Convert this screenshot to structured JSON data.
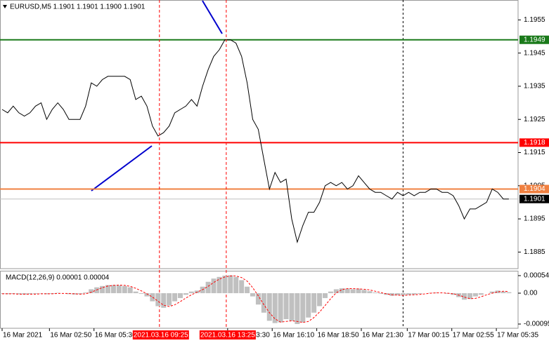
{
  "chart_data": [
    {
      "type": "line",
      "title": "EURUSD,M5  1.1901 1.1901 1.1900 1.1901",
      "xlim": [
        0,
        1853
      ],
      "xticks": [
        {
          "value": 0,
          "label": "16 Mar 2021"
        },
        {
          "value": 170,
          "label": "16 Mar 02:50"
        },
        {
          "value": 330,
          "label": "16 Mar 05:30"
        },
        {
          "value": 810,
          "label": "16 Mar 13:30"
        },
        {
          "value": 970,
          "label": "16 Mar 16:10"
        },
        {
          "value": 1130,
          "label": "16 Mar 18:50"
        },
        {
          "value": 1290,
          "label": "16 Mar 21:30"
        },
        {
          "value": 1455,
          "label": "17 Mar 00:15"
        },
        {
          "value": 1615,
          "label": "17 Mar 02:55"
        },
        {
          "value": 1775,
          "label": "17 Mar 05:35"
        }
      ],
      "ylim": [
        1.188,
        1.1961
      ],
      "yticks": [
        1.1955,
        1.1945,
        1.1935,
        1.1925,
        1.1915,
        1.1905,
        1.1895,
        1.1885
      ],
      "x": [
        0,
        20,
        40,
        60,
        80,
        100,
        120,
        140,
        160,
        180,
        200,
        220,
        240,
        260,
        280,
        300,
        320,
        340,
        360,
        380,
        400,
        420,
        440,
        460,
        480,
        500,
        520,
        540,
        560,
        580,
        600,
        620,
        640,
        660,
        680,
        700,
        720,
        740,
        760,
        780,
        800,
        820,
        840,
        860,
        880,
        900,
        920,
        940,
        960,
        980,
        1000,
        1020,
        1040,
        1060,
        1080,
        1100,
        1120,
        1140,
        1160,
        1180,
        1200,
        1220,
        1240,
        1260,
        1280,
        1300,
        1320,
        1340,
        1360,
        1380,
        1400,
        1420,
        1440,
        1460,
        1480,
        1500,
        1520,
        1540,
        1560,
        1580,
        1600,
        1620,
        1640,
        1660,
        1680,
        1700,
        1720,
        1740,
        1760,
        1780,
        1800,
        1820
      ],
      "series": [
        {
          "color": "#000000",
          "values": [
            1.1928,
            1.1927,
            1.1929,
            1.1927,
            1.1926,
            1.1927,
            1.1929,
            1.193,
            1.1925,
            1.1928,
            1.193,
            1.1928,
            1.1925,
            1.1925,
            1.1925,
            1.1929,
            1.1936,
            1.1935,
            1.1937,
            1.1938,
            1.1938,
            1.1938,
            1.1938,
            1.1937,
            1.1931,
            1.1932,
            1.1929,
            1.1923,
            1.192,
            1.1921,
            1.1923,
            1.1927,
            1.1928,
            1.1929,
            1.1931,
            1.1929,
            1.1935,
            1.194,
            1.1944,
            1.1946,
            1.1949,
            1.1949,
            1.1948,
            1.1944,
            1.1936,
            1.1925,
            1.1922,
            1.1913,
            1.1904,
            1.1909,
            1.1906,
            1.1907,
            1.1895,
            1.1888,
            1.1893,
            1.1897,
            1.1897,
            1.19,
            1.1905,
            1.1906,
            1.1905,
            1.1906,
            1.1904,
            1.1905,
            1.1908,
            1.1906,
            1.1904,
            1.1903,
            1.1903,
            1.1902,
            1.1901,
            1.1903,
            1.1902,
            1.1903,
            1.1902,
            1.1903,
            1.1903,
            1.1904,
            1.1904,
            1.1903,
            1.1903,
            1.1902,
            1.1899,
            1.1895,
            1.1898,
            1.1898,
            1.1899,
            1.19,
            1.1904,
            1.1903,
            1.1901,
            1.1901
          ]
        }
      ],
      "hlines": [
        {
          "value": 1.1949,
          "color": "#1a7a1a",
          "label_color": "#1a7a1a"
        },
        {
          "value": 1.1918,
          "color": "#ff0000",
          "label_color": "#ff0000"
        },
        {
          "value": 1.1904,
          "color": "#f08040",
          "label_color": "#f08040"
        },
        {
          "value": 1.1901,
          "color": "#c0c0c0",
          "label_color": "#000000"
        }
      ],
      "vlines": [
        {
          "value": 565,
          "label": "2021.03.16 09:25",
          "color": "#ff0000"
        },
        {
          "value": 805,
          "label": "2021.03.16 13:25",
          "color": "#ff0000"
        }
      ],
      "separators": [
        1440
      ]
    },
    {
      "type": "macd",
      "title": "MACD(12,26,9) 0.00001 0.00004",
      "xlim": [
        0,
        1853
      ],
      "ylim": [
        -0.00108,
        0.00069
      ],
      "yticks": [
        0.00054,
        {
          "value": 0,
          "label": "0.00"
        },
        -0.00095
      ],
      "x": [
        0,
        20,
        40,
        60,
        80,
        100,
        120,
        140,
        160,
        180,
        200,
        220,
        240,
        260,
        280,
        300,
        320,
        340,
        360,
        380,
        400,
        420,
        440,
        460,
        480,
        500,
        520,
        540,
        560,
        580,
        600,
        620,
        640,
        660,
        680,
        700,
        720,
        740,
        760,
        780,
        800,
        820,
        840,
        860,
        880,
        900,
        920,
        940,
        960,
        980,
        1000,
        1020,
        1040,
        1060,
        1080,
        1100,
        1120,
        1140,
        1160,
        1180,
        1200,
        1220,
        1240,
        1260,
        1280,
        1300,
        1320,
        1340,
        1360,
        1380,
        1400,
        1420,
        1440,
        1460,
        1480,
        1500,
        1520,
        1540,
        1560,
        1580,
        1600,
        1620,
        1640,
        1660,
        1680,
        1700,
        1720,
        1740,
        1760,
        1780,
        1800,
        1820
      ],
      "series": [
        {
          "type": "bar",
          "color": "#c0c0c0",
          "values": [
            -2e-05,
            -3e-05,
            -2e-05,
            -3e-05,
            -4e-05,
            -3e-05,
            -2e-05,
            -1e-05,
            -3e-05,
            -2e-05,
            1e-05,
            0,
            -3e-05,
            -4e-05,
            -3e-05,
            2e-05,
            0.00012,
            0.00018,
            0.00022,
            0.00025,
            0.00025,
            0.00024,
            0.00022,
            0.00018,
            5e-05,
            -2e-05,
            -0.0001,
            -0.00025,
            -0.0004,
            -0.00045,
            -0.00038,
            -0.00025,
            -0.00015,
            -5e-05,
            5e-05,
            8e-05,
            0.0002,
            0.00035,
            0.00045,
            0.0005,
            0.00054,
            0.00055,
            0.0005,
            0.0004,
            0.0002,
            -0.0001,
            -0.00035,
            -0.0006,
            -0.00085,
            -0.00092,
            -0.0009,
            -0.0008,
            -0.00085,
            -0.00095,
            -0.0009,
            -0.00075,
            -0.0006,
            -0.0004,
            -0.00015,
            5e-05,
            0.00012,
            0.00015,
            0.00014,
            0.00012,
            0.00014,
            0.0001,
            6e-05,
            2e-05,
            -2e-05,
            -5e-05,
            -8e-05,
            -6e-05,
            -6e-05,
            -5e-05,
            -4e-05,
            -2e-05,
            0,
            1e-05,
            2e-05,
            0,
            -2e-05,
            -5e-05,
            -0.00012,
            -0.0002,
            -0.00018,
            -0.0001,
            -5e-05,
            0,
            5e-05,
            8e-05,
            5e-05,
            3e-05
          ]
        },
        {
          "type": "line",
          "color": "#ff0000",
          "dashed": true,
          "values": [
            -2e-05,
            -2e-05,
            -2e-05,
            -3e-05,
            -3e-05,
            -3e-05,
            -3e-05,
            -2e-05,
            -2e-05,
            -2e-05,
            -1e-05,
            -1e-05,
            -1e-05,
            -2e-05,
            -3e-05,
            -2e-05,
            3e-05,
            0.0001,
            0.00017,
            0.00022,
            0.00024,
            0.00025,
            0.00024,
            0.00021,
            0.00015,
            7e-05,
            -2e-05,
            -0.00012,
            -0.00025,
            -0.00037,
            -0.00041,
            -0.00036,
            -0.00026,
            -0.00015,
            -5e-05,
            3e-05,
            0.00011,
            0.00021,
            0.00033,
            0.00043,
            0.0005,
            0.00053,
            0.00053,
            0.00048,
            0.00037,
            0.00017,
            -8e-05,
            -0.00035,
            -0.0006,
            -0.00079,
            -0.00089,
            -0.00087,
            -0.00085,
            -0.00087,
            -0.0009,
            -0.00087,
            -0.00075,
            -0.00058,
            -0.00038,
            -0.00017,
            1e-05,
            0.00011,
            0.00014,
            0.00014,
            0.00013,
            0.00012,
            0.0001,
            6e-05,
            2e-05,
            -2e-05,
            -5e-05,
            -6e-05,
            -7e-05,
            -6e-05,
            -5e-05,
            -4e-05,
            -2e-05,
            0,
            1e-05,
            1e-05,
            0,
            -2e-05,
            -6e-05,
            -0.00012,
            -0.00017,
            -0.00016,
            -0.00011,
            -5e-05,
            0,
            4e-05,
            6e-05,
            5e-05
          ]
        }
      ]
    }
  ]
}
